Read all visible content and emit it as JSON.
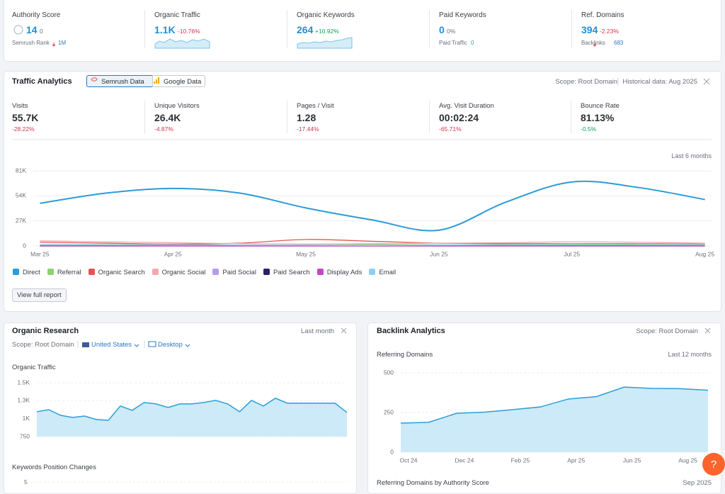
{
  "summary": [
    {
      "label": "Authority Score",
      "value": "14",
      "change": "0",
      "sub_label": "Semrush Rank",
      "sub_value": "1M"
    },
    {
      "label": "Organic Traffic",
      "value": "1.1K",
      "change": "-10.76%"
    },
    {
      "label": "Organic Keywords",
      "value": "264",
      "change": "+10.92%"
    },
    {
      "label": "Paid Keywords",
      "value": "0",
      "change": "0%",
      "sub_label": "Paid Traffic",
      "sub_value": "0"
    },
    {
      "label": "Ref. Domains",
      "value": "394",
      "change": "-2.23%",
      "sub_label": "Backlinks",
      "sub_value": "683"
    }
  ],
  "traffic": {
    "title": "Traffic Analytics",
    "sources": [
      "Semrush Data",
      "Google Data"
    ],
    "scope": "Scope: Root Domain",
    "historical": "Historical data: Aug 2025",
    "stats": [
      {
        "label": "Visits",
        "value": "55.7K",
        "change": "-28.22%"
      },
      {
        "label": "Unique Visitors",
        "value": "26.4K",
        "change": "-4.87%"
      },
      {
        "label": "Pages / Visit",
        "value": "1.28",
        "change": "-17.44%"
      },
      {
        "label": "Avg. Visit Duration",
        "value": "00:02:24",
        "change": "-65.71%"
      },
      {
        "label": "Bounce Rate",
        "value": "81.13%",
        "change": "-0.5%"
      }
    ],
    "button": "View full report"
  },
  "organic_research": {
    "title": "Organic Research",
    "period": "Last month",
    "scope": "Scope: Root Domain",
    "country": "United States",
    "device": "Desktop",
    "keywords_title": "Keywords Position Changes",
    "keywords_tick": "5"
  },
  "backlinks": {
    "title": "Backlink Analytics",
    "scope": "Scope: Root Domain",
    "next_title": "Referring Domains by Authority Score",
    "next_period": "Sep 2025"
  },
  "help": "?",
  "chart_data": [
    {
      "type": "line",
      "subtitle": "Last 6 months",
      "x": [
        0,
        0.5,
        1,
        1.5,
        2,
        2.5,
        3,
        3.5,
        4,
        4.5,
        5
      ],
      "xlim": [
        -0.05,
        5.05
      ],
      "xticks": [
        {
          "value": 0,
          "label": "Mar 25"
        },
        {
          "value": 1,
          "label": "Apr 25"
        },
        {
          "value": 2,
          "label": "May 25"
        },
        {
          "value": 3,
          "label": "Jun 25"
        },
        {
          "value": 4,
          "label": "Jul 25"
        },
        {
          "value": 5,
          "label": "Aug 25"
        }
      ],
      "ylim": [
        0,
        81000
      ],
      "yticks": [
        0,
        {
          "value": 27000,
          "label": "27K"
        },
        {
          "value": 54000,
          "label": "54K"
        },
        {
          "value": 81000,
          "label": "81K"
        }
      ],
      "grid": true,
      "series": [
        {
          "name": "Direct",
          "color": "#2d9bd6",
          "values": [
            46000,
            57000,
            62000,
            57000,
            41000,
            28000,
            17000,
            47000,
            69000,
            63000,
            50000
          ]
        },
        {
          "name": "Referral",
          "color": "#8ed16c",
          "values": [
            1000,
            1000,
            1200,
            1000,
            1000,
            1500,
            1200,
            1000,
            1000,
            1000,
            1000
          ]
        },
        {
          "name": "Organic Search",
          "color": "#e55353",
          "values": [
            4000,
            3000,
            2000,
            3000,
            7000,
            5000,
            3000,
            2500,
            2500,
            2500,
            2000
          ]
        },
        {
          "name": "Organic Social",
          "color": "#f4a7b3",
          "values": [
            5500,
            4500,
            3500,
            2500,
            2000,
            2500,
            3000,
            3500,
            4500,
            4000,
            3000
          ]
        },
        {
          "name": "Paid Social",
          "color": "#b79ce8",
          "values": [
            0,
            0,
            0,
            0,
            0,
            0,
            0,
            0,
            0,
            0,
            0
          ]
        },
        {
          "name": "Paid Search",
          "color": "#2b1e6b",
          "values": [
            0,
            0,
            0,
            0,
            0,
            0,
            0,
            0,
            0,
            0,
            0
          ]
        },
        {
          "name": "Display Ads",
          "color": "#c545c5",
          "values": [
            0,
            0,
            0,
            0,
            0,
            0,
            0,
            0,
            0,
            0,
            0
          ]
        },
        {
          "name": "Email",
          "color": "#8fd0f2",
          "values": [
            1500,
            1500,
            1200,
            1000,
            800,
            600,
            1000,
            1500,
            2000,
            2000,
            1500
          ]
        }
      ]
    },
    {
      "type": "area",
      "title": "Organic Traffic",
      "color": "#2a9fd8",
      "values": [
        1096,
        1125,
        1046,
        1017,
        1036,
        987,
        977,
        1175,
        1116,
        1225,
        1205,
        1155,
        1205,
        1205,
        1225,
        1254,
        1205,
        1096,
        1254,
        1175,
        1284,
        1215,
        1215,
        1215,
        1215,
        1215,
        1086
      ],
      "ylim": [
        750,
        1500
      ],
      "yticks": [
        750,
        {
          "value": 1000,
          "label": "1K"
        },
        {
          "value": 1250,
          "label": "1.3K"
        },
        {
          "value": 1500,
          "label": "1.5K"
        }
      ],
      "grid": true
    },
    {
      "type": "area",
      "title": "Referring Domains",
      "subtitle": "Last 12 months",
      "color": "#2a9fd8",
      "categories": [
        "Oct 24",
        null,
        "Dec 24",
        null,
        "Feb 25",
        null,
        "Apr 25",
        null,
        "Jun 25",
        null,
        "Aug 25",
        null
      ],
      "values": [
        183,
        188,
        245,
        252,
        268,
        285,
        335,
        350,
        410,
        402,
        400,
        390
      ],
      "ylim": [
        0,
        500
      ],
      "yticks": [
        0,
        250,
        500
      ],
      "grid": true
    }
  ]
}
